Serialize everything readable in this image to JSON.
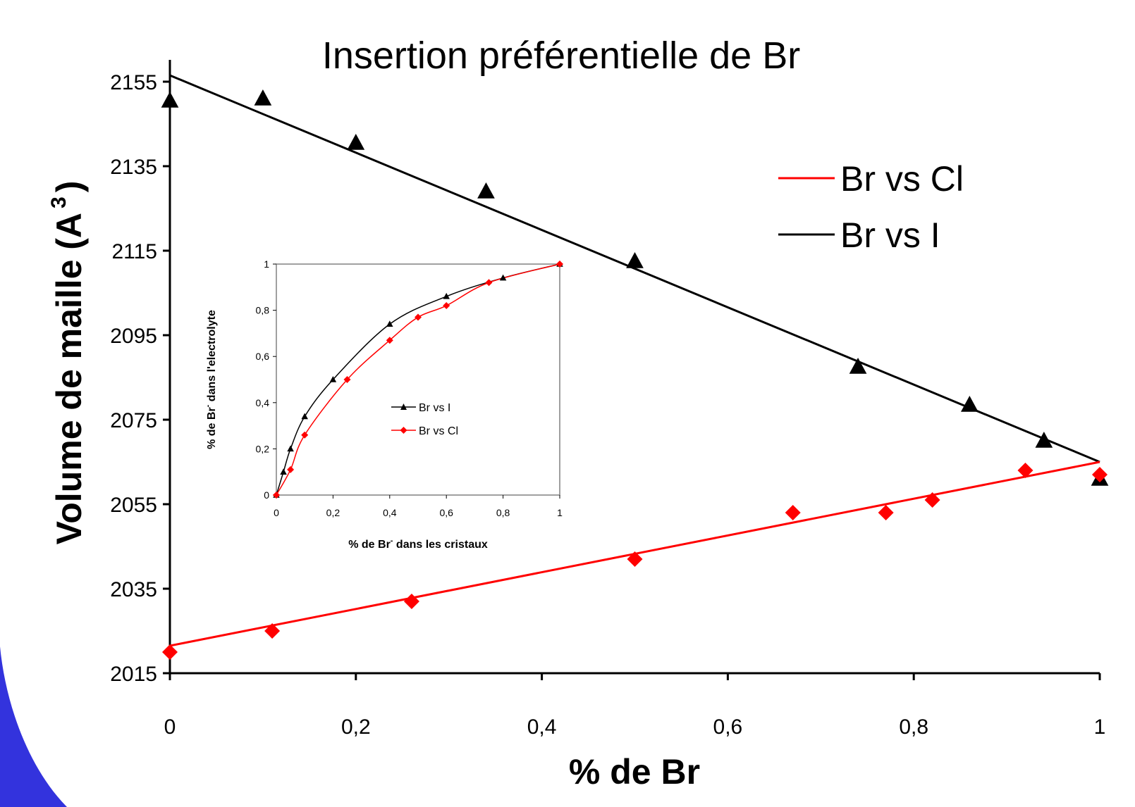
{
  "colors": {
    "background": "#ffffff",
    "series_black": "#000000",
    "series_red": "#ff0000",
    "decoration_blue": "#3333dd"
  },
  "chart_data": [
    {
      "id": "main",
      "type": "scatter",
      "title": "Insertion préférentielle de Br",
      "xlabel": "% de Br",
      "ylabel": "Volume de maille (A",
      "ylabel_superscript": "3",
      "ylabel_suffix": ")",
      "xlim": [
        0,
        1
      ],
      "ylim": [
        2015,
        2155
      ],
      "xticks": [
        0,
        0.2,
        0.4,
        0.6,
        0.8,
        1
      ],
      "xtick_labels": [
        "0",
        "0,2",
        "0,4",
        "0,6",
        "0,8",
        "1"
      ],
      "yticks": [
        2015,
        2035,
        2055,
        2075,
        2095,
        2115,
        2135,
        2155
      ],
      "ytick_labels": [
        "2015",
        "2035",
        "2055",
        "2075",
        "2095",
        "2115",
        "2135",
        "2155"
      ],
      "grid": false,
      "legend_position": "top-right",
      "legend": [
        {
          "label": "Br vs Cl",
          "color": "#ff0000"
        },
        {
          "label": "Br vs I",
          "color": "#000000"
        }
      ],
      "series": [
        {
          "name": "Br vs I",
          "color": "#000000",
          "marker": "triangle",
          "points": [
            [
              0,
              2150.5
            ],
            [
              0.1,
              2151
            ],
            [
              0.2,
              2140.5
            ],
            [
              0.34,
              2129
            ],
            [
              0.5,
              2112.5
            ],
            [
              0.74,
              2087.5
            ],
            [
              0.86,
              2078.5
            ],
            [
              0.94,
              2070
            ],
            [
              1,
              2061
            ]
          ],
          "fit": [
            [
              0,
              2156.5
            ],
            [
              1,
              2065
            ]
          ]
        },
        {
          "name": "Br vs Cl",
          "color": "#ff0000",
          "marker": "diamond",
          "points": [
            [
              0,
              2020
            ],
            [
              0.11,
              2025
            ],
            [
              0.26,
              2032
            ],
            [
              0.5,
              2042
            ],
            [
              0.67,
              2053
            ],
            [
              0.77,
              2053
            ],
            [
              0.82,
              2056
            ],
            [
              0.92,
              2063
            ],
            [
              1,
              2062
            ]
          ],
          "fit": [
            [
              0,
              2021.5
            ],
            [
              1,
              2065
            ]
          ]
        }
      ]
    },
    {
      "id": "inset",
      "type": "line",
      "xlabel": "% de Br",
      "xlabel_superscript": "-",
      "xlabel_suffix": " dans les cristaux",
      "ylabel": "% de Br",
      "ylabel_superscript": "-",
      "ylabel_suffix": " dans l'electrolyte",
      "xlim": [
        0,
        1
      ],
      "ylim": [
        0,
        1
      ],
      "xticks": [
        0,
        0.2,
        0.4,
        0.6,
        0.8,
        1
      ],
      "xtick_labels": [
        "0",
        "0,2",
        "0,4",
        "0,6",
        "0,8",
        "1"
      ],
      "yticks": [
        0,
        0.2,
        0.4,
        0.6,
        0.8,
        1
      ],
      "ytick_labels": [
        "0",
        "0,2",
        "0,4",
        "0,6",
        "0,8",
        "1"
      ],
      "grid": false,
      "legend_position": "center",
      "series": [
        {
          "name": "Br vs I",
          "color": "#000000",
          "marker": "triangle",
          "x": [
            0,
            0.025,
            0.05,
            0.1,
            0.2,
            0.4,
            0.6,
            0.8,
            1
          ],
          "y": [
            0,
            0.1,
            0.2,
            0.34,
            0.5,
            0.74,
            0.86,
            0.94,
            1
          ]
        },
        {
          "name": "Br vs Cl",
          "color": "#ff0000",
          "marker": "diamond",
          "x": [
            0,
            0.05,
            0.1,
            0.25,
            0.4,
            0.5,
            0.6,
            0.75,
            1
          ],
          "y": [
            0,
            0.11,
            0.26,
            0.5,
            0.67,
            0.77,
            0.82,
            0.92,
            1
          ]
        }
      ]
    }
  ]
}
